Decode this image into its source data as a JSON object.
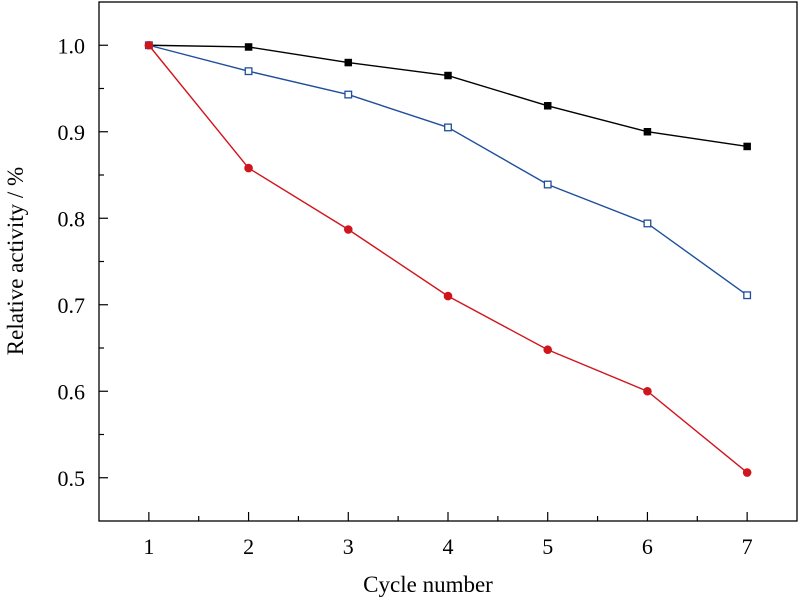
{
  "chart_data": {
    "type": "line",
    "title": "",
    "xlabel": "Cycle number",
    "ylabel": "Relative activity / %",
    "xlim": [
      0.5,
      7.5
    ],
    "ylim": [
      0.45,
      1.05
    ],
    "x_ticks": [
      1,
      2,
      3,
      4,
      5,
      6,
      7
    ],
    "x_tick_labels": [
      "1",
      "2",
      "3",
      "4",
      "5",
      "6",
      "7"
    ],
    "y_ticks": [
      0.5,
      0.6,
      0.7,
      0.8,
      0.9,
      1.0
    ],
    "y_tick_labels": [
      "0.5",
      "0.6",
      "0.7",
      "0.8",
      "0.9",
      "1.0"
    ],
    "grid": false,
    "legend": "none",
    "x": [
      1,
      2,
      3,
      4,
      5,
      6,
      7
    ],
    "series": [
      {
        "color": "#000000",
        "marker": "filled-square",
        "values": [
          1.0,
          0.998,
          0.98,
          0.965,
          0.93,
          0.9,
          0.883
        ]
      },
      {
        "color": "#1f4e9c",
        "marker": "open-square",
        "values": [
          1.0,
          0.97,
          0.943,
          0.905,
          0.839,
          0.794,
          0.711
        ]
      },
      {
        "color": "#d0151d",
        "marker": "filled-circle",
        "values": [
          1.0,
          0.858,
          0.787,
          0.71,
          0.648,
          0.6,
          0.506
        ]
      }
    ]
  }
}
